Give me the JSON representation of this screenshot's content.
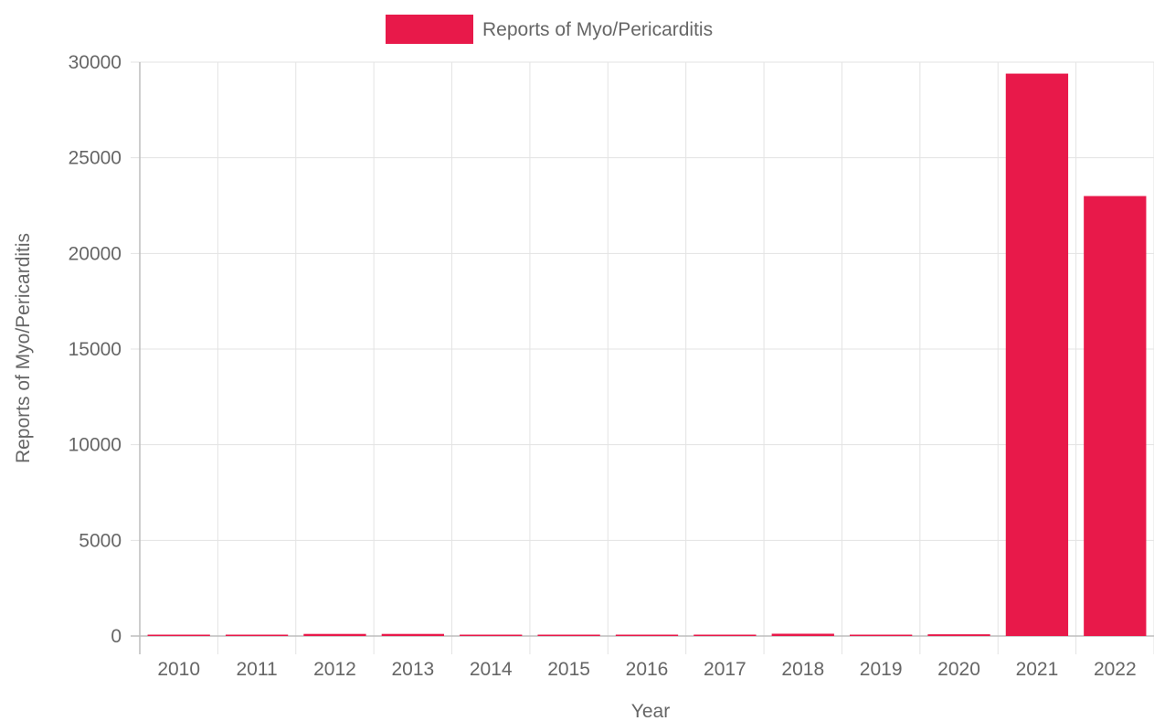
{
  "chart_data": {
    "type": "bar",
    "categories": [
      "2010",
      "2011",
      "2012",
      "2013",
      "2014",
      "2015",
      "2016",
      "2017",
      "2018",
      "2019",
      "2020",
      "2021",
      "2022"
    ],
    "series": [
      {
        "name": "Reports of Myo/Pericarditis",
        "color": "#e8194a",
        "values": [
          30,
          40,
          110,
          110,
          40,
          40,
          40,
          40,
          120,
          70,
          90,
          29400,
          23000
        ]
      }
    ],
    "xlabel": "Year",
    "ylabel": "Reports of Myo/Pericarditis",
    "ylim": [
      0,
      30000
    ],
    "yticks": [
      0,
      5000,
      10000,
      15000,
      20000,
      25000,
      30000
    ],
    "grid": true,
    "legend_position": "top-center"
  }
}
